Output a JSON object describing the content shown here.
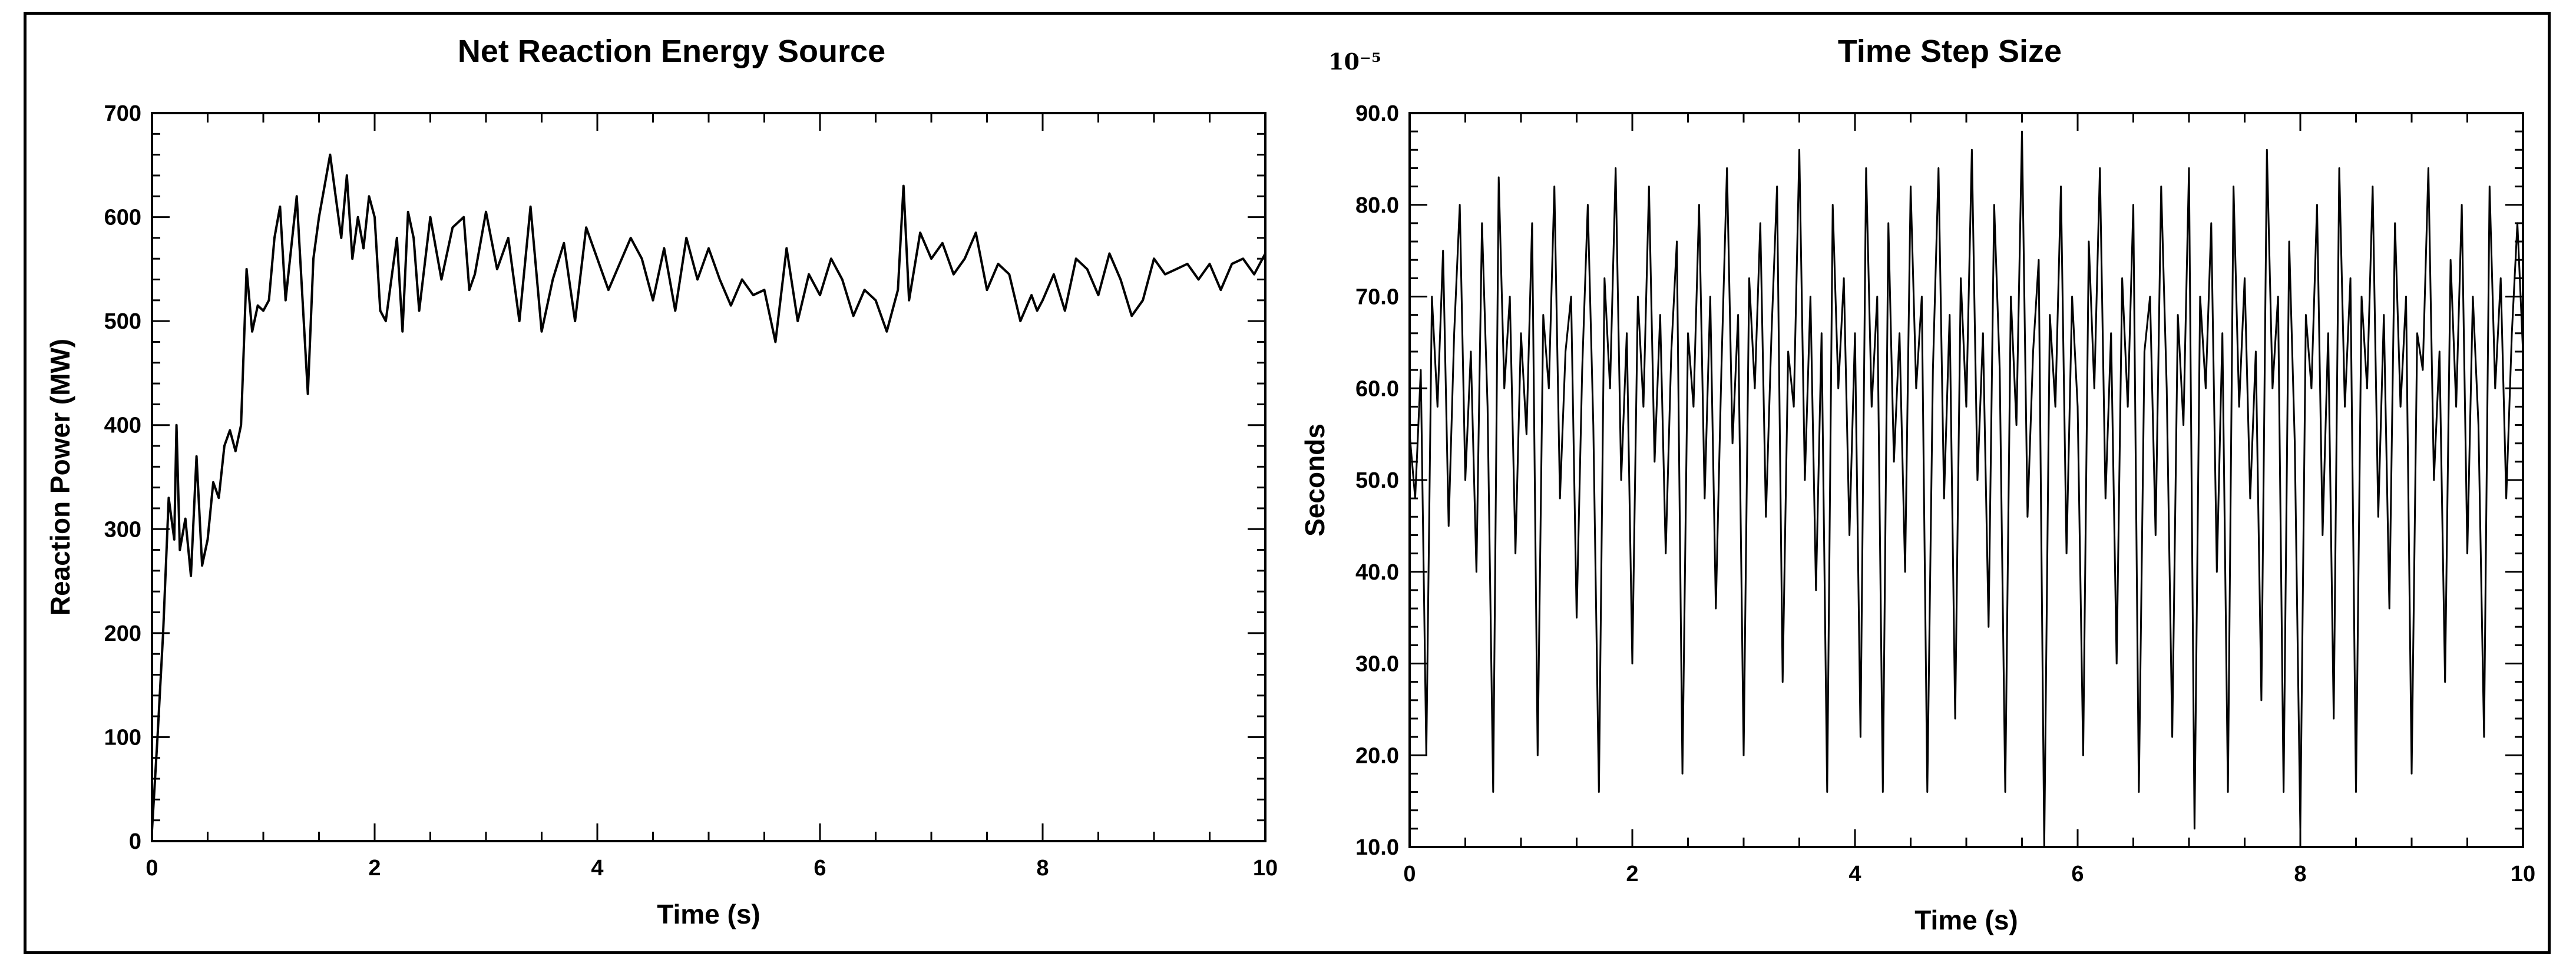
{
  "chart_data": [
    {
      "type": "line",
      "title": "Net Reaction Energy Source",
      "xlabel": "Time (s)",
      "ylabel": "Reaction Power (MW)",
      "xlim": [
        0,
        10
      ],
      "ylim": [
        0,
        700
      ],
      "xticks": [
        0,
        2,
        4,
        6,
        8,
        10
      ],
      "yticks": [
        0,
        100,
        200,
        300,
        400,
        500,
        600,
        700
      ],
      "grid": false,
      "line_color": "#000000",
      "series": [
        {
          "x": [
            0,
            0.05,
            0.1,
            0.15,
            0.2,
            0.22,
            0.25,
            0.3,
            0.35,
            0.4,
            0.45,
            0.5,
            0.55,
            0.6,
            0.65,
            0.7,
            0.75,
            0.8,
            0.85,
            0.9,
            0.95,
            1.0,
            1.05,
            1.1,
            1.15,
            1.2,
            1.3,
            1.4,
            1.45,
            1.5,
            1.55,
            1.6,
            1.65,
            1.7,
            1.75,
            1.8,
            1.85,
            1.9,
            1.95,
            2.0,
            2.05,
            2.1,
            2.15,
            2.2,
            2.25,
            2.3,
            2.35,
            2.4,
            2.5,
            2.6,
            2.7,
            2.8,
            2.85,
            2.9,
            3.0,
            3.1,
            3.2,
            3.3,
            3.4,
            3.5,
            3.6,
            3.7,
            3.8,
            3.9,
            4.0,
            4.1,
            4.2,
            4.3,
            4.4,
            4.5,
            4.6,
            4.7,
            4.8,
            4.9,
            5.0,
            5.1,
            5.2,
            5.3,
            5.4,
            5.5,
            5.6,
            5.7,
            5.8,
            5.9,
            6.0,
            6.1,
            6.2,
            6.3,
            6.4,
            6.5,
            6.6,
            6.7,
            6.75,
            6.8,
            6.9,
            7.0,
            7.1,
            7.2,
            7.3,
            7.4,
            7.5,
            7.6,
            7.7,
            7.8,
            7.9,
            7.95,
            8.0,
            8.1,
            8.2,
            8.3,
            8.4,
            8.5,
            8.6,
            8.7,
            8.8,
            8.9,
            9.0,
            9.1,
            9.2,
            9.3,
            9.4,
            9.5,
            9.6,
            9.7,
            9.8,
            9.9,
            10.0
          ],
          "values": [
            10,
            100,
            200,
            330,
            290,
            400,
            280,
            310,
            255,
            370,
            265,
            290,
            345,
            330,
            380,
            395,
            375,
            400,
            550,
            490,
            515,
            510,
            520,
            580,
            610,
            520,
            620,
            430,
            560,
            600,
            630,
            660,
            620,
            580,
            640,
            560,
            600,
            570,
            620,
            600,
            510,
            500,
            540,
            580,
            490,
            605,
            580,
            510,
            600,
            540,
            590,
            600,
            530,
            545,
            605,
            550,
            580,
            500,
            610,
            490,
            540,
            575,
            500,
            590,
            560,
            530,
            555,
            580,
            560,
            520,
            570,
            510,
            580,
            540,
            570,
            540,
            515,
            540,
            525,
            530,
            480,
            570,
            500,
            545,
            525,
            560,
            540,
            505,
            530,
            520,
            490,
            530,
            630,
            520,
            585,
            560,
            575,
            545,
            560,
            585,
            530,
            555,
            545,
            500,
            525,
            510,
            520,
            545,
            510,
            560,
            550,
            525,
            565,
            540,
            505,
            520,
            560,
            545,
            550,
            555,
            540,
            555,
            530,
            555,
            560,
            545,
            565
          ]
        }
      ]
    },
    {
      "type": "line",
      "title": "Time Step Size",
      "scale_label": "10⁻⁵",
      "xlabel": "Time (s)",
      "ylabel": "Seconds",
      "xlim": [
        0,
        10
      ],
      "ylim": [
        10,
        90
      ],
      "xticks": [
        0,
        2,
        4,
        6,
        8,
        10
      ],
      "yticks": [
        10.0,
        20.0,
        30.0,
        40.0,
        50.0,
        60.0,
        70.0,
        80.0,
        90.0
      ],
      "ytick_labels": [
        "10.0",
        "20.0",
        "30.0",
        "40.0",
        "50.0",
        "60.0",
        "70.0",
        "80.0",
        "90.0"
      ],
      "grid": false,
      "line_color": "#000000",
      "series": [
        {
          "x": [
            0,
            0.05,
            0.1,
            0.15,
            0.2,
            0.25,
            0.3,
            0.35,
            0.4,
            0.45,
            0.5,
            0.55,
            0.6,
            0.65,
            0.7,
            0.75,
            0.8,
            0.85,
            0.9,
            0.95,
            1.0,
            1.05,
            1.1,
            1.15,
            1.2,
            1.25,
            1.3,
            1.35,
            1.4,
            1.45,
            1.5,
            1.55,
            1.6,
            1.65,
            1.7,
            1.75,
            1.8,
            1.85,
            1.9,
            1.95,
            2.0,
            2.05,
            2.1,
            2.15,
            2.2,
            2.25,
            2.3,
            2.35,
            2.4,
            2.45,
            2.5,
            2.55,
            2.6,
            2.65,
            2.7,
            2.75,
            2.8,
            2.85,
            2.9,
            2.95,
            3.0,
            3.05,
            3.1,
            3.15,
            3.2,
            3.25,
            3.3,
            3.35,
            3.4,
            3.45,
            3.5,
            3.55,
            3.6,
            3.65,
            3.7,
            3.75,
            3.8,
            3.85,
            3.9,
            3.95,
            4.0,
            4.05,
            4.1,
            4.15,
            4.2,
            4.25,
            4.3,
            4.35,
            4.4,
            4.45,
            4.5,
            4.55,
            4.6,
            4.65,
            4.7,
            4.75,
            4.8,
            4.85,
            4.9,
            4.95,
            5.0,
            5.05,
            5.1,
            5.15,
            5.2,
            5.25,
            5.3,
            5.35,
            5.4,
            5.45,
            5.5,
            5.55,
            5.6,
            5.65,
            5.7,
            5.75,
            5.8,
            5.85,
            5.9,
            5.95,
            6.0,
            6.05,
            6.1,
            6.15,
            6.2,
            6.25,
            6.3,
            6.35,
            6.4,
            6.45,
            6.5,
            6.55,
            6.6,
            6.65,
            6.7,
            6.75,
            6.8,
            6.85,
            6.9,
            6.95,
            7.0,
            7.05,
            7.1,
            7.15,
            7.2,
            7.25,
            7.3,
            7.35,
            7.4,
            7.45,
            7.5,
            7.55,
            7.6,
            7.65,
            7.7,
            7.75,
            7.8,
            7.85,
            7.9,
            7.95,
            8.0,
            8.05,
            8.1,
            8.15,
            8.2,
            8.25,
            8.3,
            8.35,
            8.4,
            8.45,
            8.5,
            8.55,
            8.6,
            8.65,
            8.7,
            8.75,
            8.8,
            8.85,
            8.9,
            8.95,
            9.0,
            9.05,
            9.1,
            9.15,
            9.2,
            9.25,
            9.3,
            9.35,
            9.4,
            9.45,
            9.5,
            9.55,
            9.6,
            9.65,
            9.7,
            9.75,
            9.8,
            9.85,
            9.9,
            9.95,
            10.0
          ],
          "values": [
            55,
            48,
            62,
            20,
            70,
            58,
            75,
            45,
            66,
            80,
            50,
            64,
            40,
            78,
            58,
            16,
            83,
            60,
            70,
            42,
            66,
            55,
            78,
            20,
            68,
            60,
            82,
            48,
            64,
            70,
            35,
            62,
            80,
            56,
            16,
            72,
            60,
            84,
            50,
            66,
            30,
            70,
            58,
            82,
            52,
            68,
            42,
            64,
            76,
            18,
            66,
            58,
            80,
            48,
            70,
            36,
            62,
            84,
            54,
            68,
            20,
            72,
            60,
            78,
            46,
            66,
            82,
            28,
            64,
            58,
            86,
            50,
            70,
            38,
            66,
            16,
            80,
            60,
            72,
            44,
            66,
            22,
            84,
            58,
            70,
            16,
            78,
            52,
            66,
            40,
            82,
            60,
            70,
            16,
            62,
            84,
            48,
            68,
            24,
            72,
            58,
            86,
            50,
            66,
            34,
            80,
            62,
            16,
            70,
            56,
            88,
            46,
            64,
            74,
            10,
            68,
            58,
            82,
            42,
            70,
            58,
            20,
            76,
            60,
            84,
            48,
            66,
            30,
            72,
            58,
            80,
            16,
            64,
            70,
            44,
            82,
            60,
            22,
            68,
            56,
            84,
            12,
            70,
            60,
            78,
            40,
            66,
            16,
            82,
            58,
            72,
            48,
            64,
            26,
            86,
            60,
            70,
            16,
            76,
            54,
            12,
            68,
            60,
            80,
            44,
            66,
            24,
            84,
            58,
            72,
            16,
            70,
            60,
            82,
            46,
            68,
            36,
            78,
            58,
            70,
            18,
            66,
            62,
            84,
            50,
            64,
            28,
            74,
            58,
            80,
            42,
            70,
            56,
            22,
            82,
            60,
            72,
            48,
            66,
            78,
            64
          ]
        }
      ]
    }
  ]
}
